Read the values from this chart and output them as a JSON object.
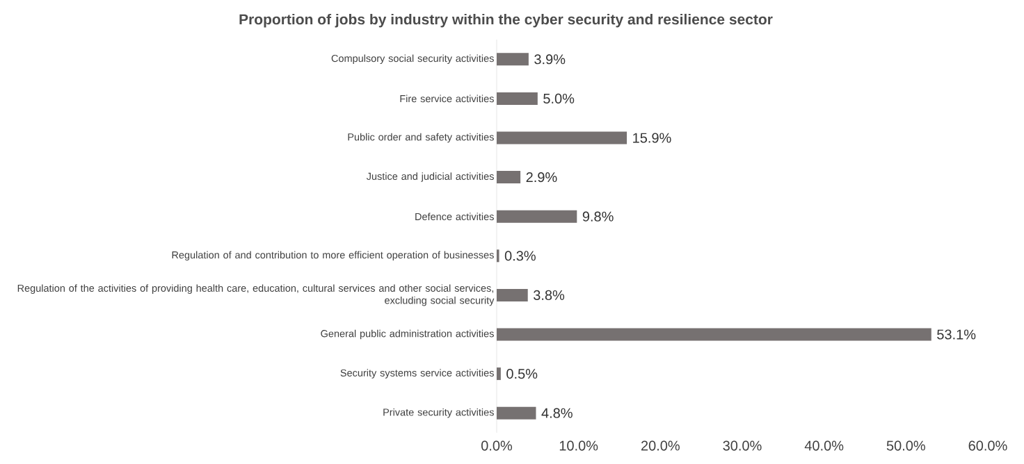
{
  "chart_data": {
    "type": "bar",
    "orientation": "horizontal",
    "title": "Proportion of jobs by industry within the cyber security and resilience sector",
    "categories": [
      "Compulsory social security activities",
      "Fire service activities",
      "Public order and safety activities",
      "Justice and judicial activities",
      "Defence activities",
      "Regulation of and contribution to more efficient operation of businesses",
      "Regulation of the activities of providing health care, education, cultural services and other social services, excluding social security",
      "General public administration activities",
      "Security systems service activities",
      "Private security activities"
    ],
    "values": [
      3.9,
      5.0,
      15.9,
      2.9,
      9.8,
      0.3,
      3.8,
      53.1,
      0.5,
      4.8
    ],
    "value_labels": [
      "3.9%",
      "5.0%",
      "15.9%",
      "2.9%",
      "9.8%",
      "0.3%",
      "3.8%",
      "53.1%",
      "0.5%",
      "4.8%"
    ],
    "color": "#767171",
    "xlim": [
      0,
      60
    ],
    "xticks": [
      {
        "value": 0,
        "label": "0.0%"
      },
      {
        "value": 10,
        "label": "10.0%"
      },
      {
        "value": 20,
        "label": "20.0%"
      },
      {
        "value": 30,
        "label": "30.0%"
      },
      {
        "value": 40,
        "label": "40.0%"
      },
      {
        "value": 50,
        "label": "50.0%"
      },
      {
        "value": 60,
        "label": "60.0%"
      }
    ]
  }
}
